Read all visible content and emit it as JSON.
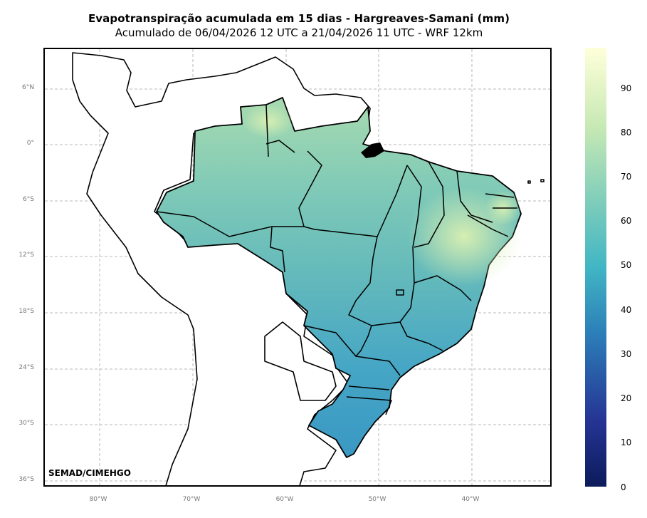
{
  "title": "Evapotranspiração acumulada em 15 dias - Hargreaves-Samani (mm)",
  "subtitle": "Acumulado de 06/04/2026 12 UTC a 21/04/2026 11 UTC - WRF 12km",
  "credit": "SEMAD/CIMEHGO",
  "latitude_labels": [
    "6°N",
    "0°",
    "6°S",
    "12°S",
    "18°S",
    "24°S",
    "30°S",
    "36°S"
  ],
  "longitude_labels": [
    "80°W",
    "70°W",
    "60°W",
    "50°W",
    "40°W"
  ],
  "colorbar": {
    "ticks": [
      "90",
      "80",
      "70",
      "60",
      "50",
      "40",
      "30",
      "20",
      "10",
      "0"
    ],
    "range": [
      0,
      100
    ],
    "colormap": "YlGnBu_r",
    "colors": [
      "#0c1b5a",
      "#253494",
      "#2c7fb8",
      "#41b6c4",
      "#7fcdbb",
      "#c7e9b4",
      "#ffffd9"
    ]
  },
  "map": {
    "region": "Brazil",
    "field": "accumulated evapotranspiration",
    "gridlines": "dashed",
    "fill_colors": {
      "north": "#7fc9b8",
      "northeast": "#b8e0ae",
      "center": "#66bdb8",
      "southeast": "#49a9c6",
      "south": "#3b9bc4"
    }
  }
}
